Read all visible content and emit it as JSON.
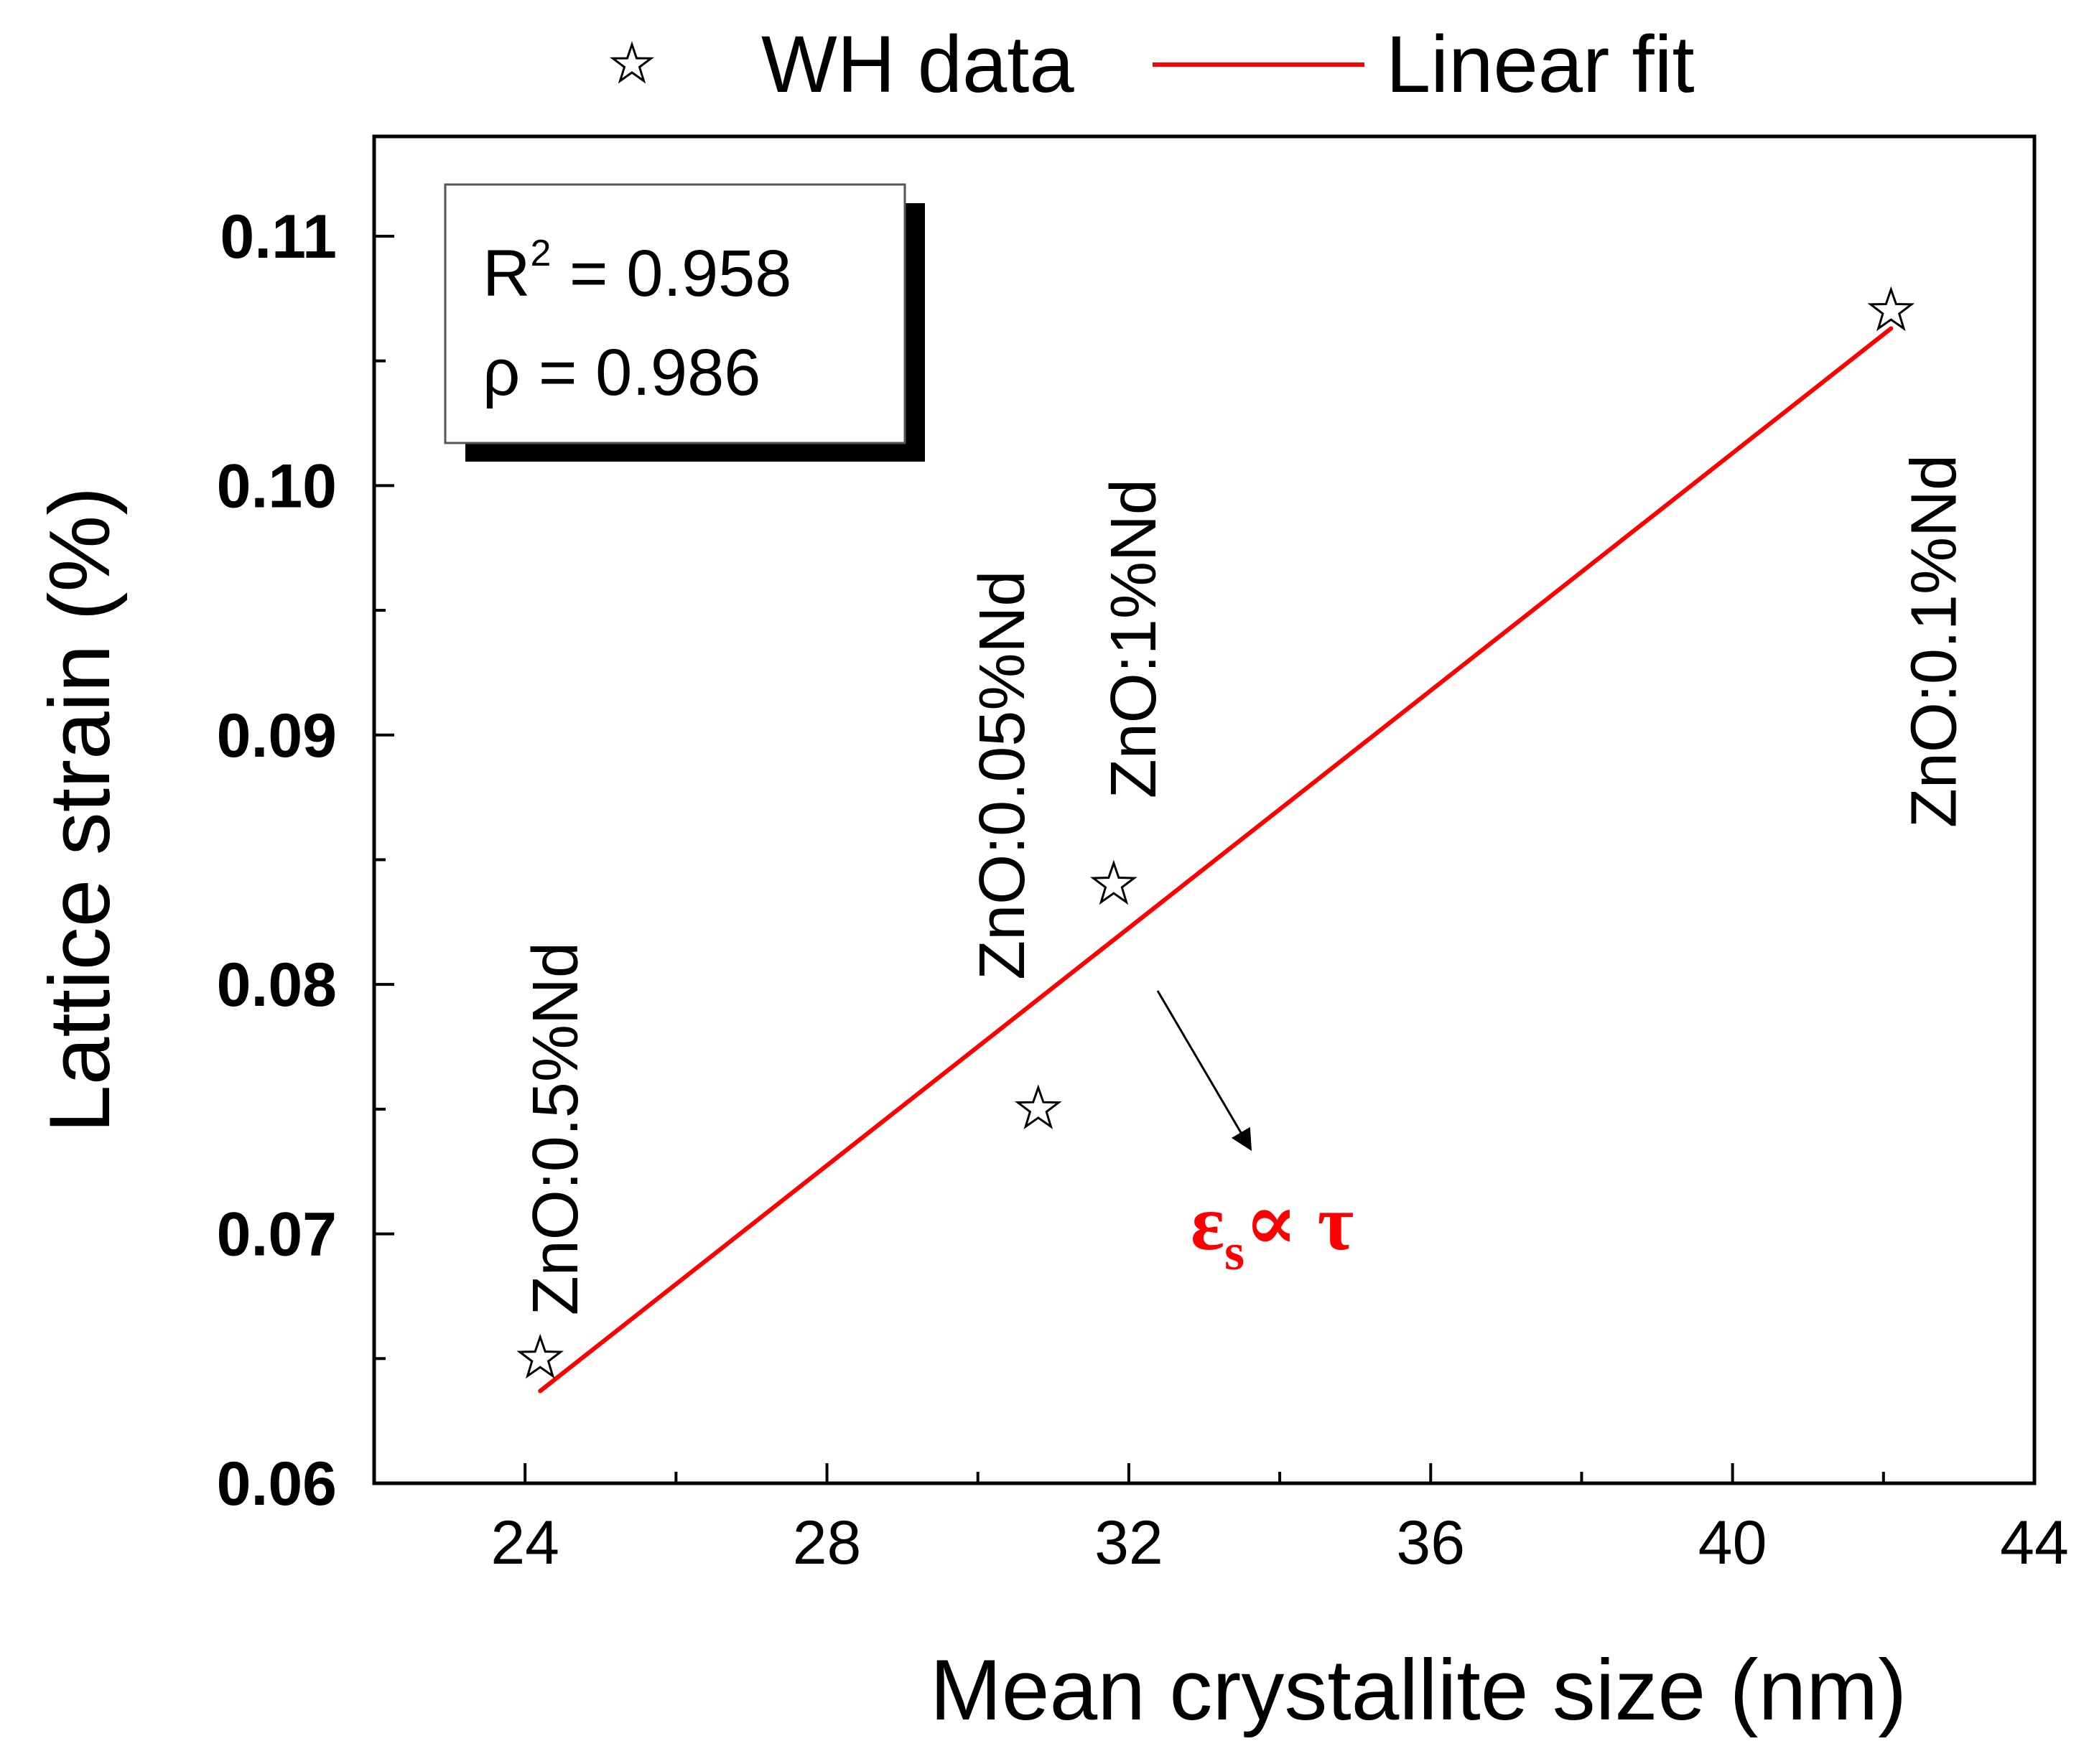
{
  "chart_data": {
    "type": "scatter",
    "xlabel": "Mean crystallite size (nm)",
    "ylabel": "Lattice strain (%)",
    "xlim": [
      22,
      44
    ],
    "ylim": [
      0.06,
      0.114
    ],
    "xticks": [
      "24",
      "28",
      "32",
      "36",
      "40",
      "44"
    ],
    "yticks": [
      "0.06",
      "0.07",
      "0.08",
      "0.09",
      "0.10",
      "0.11"
    ],
    "legend": {
      "position": "top (outside plot)",
      "entries": [
        {
          "label": "WH data",
          "marker": "star-icon"
        },
        {
          "label": "Linear fit",
          "color": "#ff0000"
        }
      ]
    },
    "series": [
      {
        "name": "WH data",
        "points": [
          {
            "x": 24.2,
            "y": 0.065,
            "label": "ZnO:0.5%Nd"
          },
          {
            "x": 30.8,
            "y": 0.075,
            "label": "ZnO:0.05%Nd"
          },
          {
            "x": 31.8,
            "y": 0.084,
            "label": "ZnO:1%Nd"
          },
          {
            "x": 42.1,
            "y": 0.107,
            "label": "ZnO:0.1%Nd"
          }
        ]
      },
      {
        "name": "Linear fit",
        "color": "#ff0000",
        "x": [
          24.2,
          42.1
        ],
        "y": [
          0.0637,
          0.1063
        ]
      }
    ],
    "stats_box": {
      "r2_label": "R",
      "r2_sup": "2",
      "r2_value": " = 0.958",
      "rho_line": "ρ = 0.986"
    },
    "annotation": {
      "eps": "ε",
      "sub": "s",
      "rest": "∝ τ",
      "color": "#ff0000"
    }
  }
}
